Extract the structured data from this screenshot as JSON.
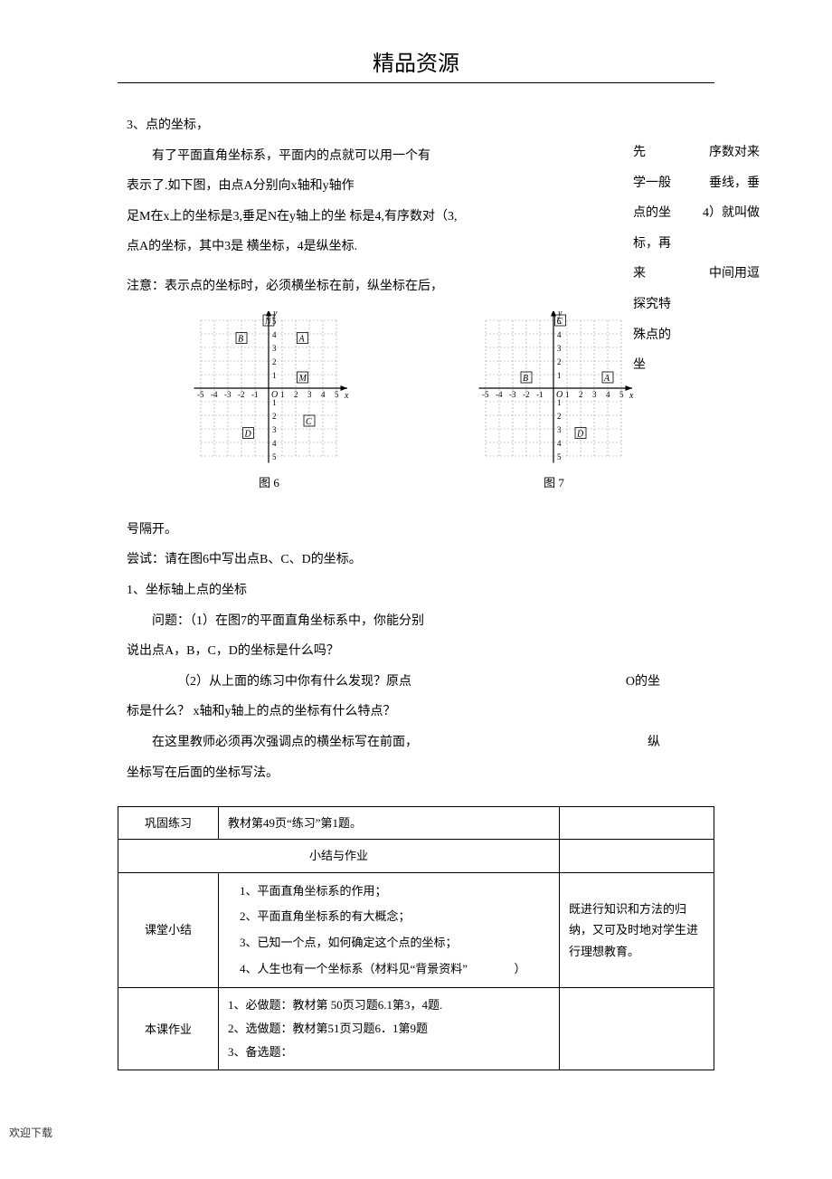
{
  "header": {
    "title": "精品资源"
  },
  "body": {
    "p1_num": "3、点的坐标，",
    "p2": "有了平面直角坐标系，平面内的点就可以用一个有",
    "p3": "表示了.如下图，由点A分别向x轴和y轴作",
    "p4": "足M在x上的坐标是3,垂足N在y轴上的坐 标是4,有序数对（3,",
    "p5": "点A的坐标，其中3是 横坐标，4是纵坐标.",
    "p6": "注意：表示点的坐标时，必须横坐标在前，纵坐标在后，",
    "p7": "号隔开。",
    "p8": "尝试：请在图6中写出点B、C、D的坐标。",
    "p9": "1、坐标轴上点的坐标",
    "p10": "问题：（1）在图7的平面直角坐标系中，你能分别",
    "p11": "说出点A，B，C，D的坐标是什么吗？",
    "p12": "（2）从上面的练习中你有什么发现？原点",
    "p12_r": "O的坐",
    "p13": "标是什么？ x轴和y轴上的点的坐标有什么特点？",
    "p14": "在这里教师必须再次强调点的横坐标写在前面，",
    "p14_r": "纵",
    "p15": "坐标写在后面的坐标写法。"
  },
  "right": {
    "r1a": "先",
    "r1b": "序数对来",
    "r2a": "学一般",
    "r2b": "垂线，垂",
    "r3a": "点的坐",
    "r3b": "4）就叫做",
    "r4": "标，再",
    "r5": "来",
    "r5b": "中间用逗",
    "r6": "探究特",
    "r7": "殊点的",
    "r8": "坐"
  },
  "figure6": {
    "caption": "图 6",
    "grid_color": "#a0a0a0",
    "axis_color": "#000000",
    "labels": {
      "B": [
        -2,
        3.5
      ],
      "N": [
        0,
        4.8
      ],
      "A": [
        2.5,
        3.5
      ],
      "M": [
        2.5,
        0.6
      ],
      "C": [
        3,
        -2.6
      ],
      "D": [
        -1.5,
        -3.5
      ]
    },
    "xrange": [
      -5,
      5
    ],
    "yrange": [
      -5,
      5
    ]
  },
  "figure7": {
    "caption": "图 7",
    "grid_color": "#a0a0a0",
    "axis_color": "#000000",
    "labels": {
      "C": [
        0.5,
        4.8
      ],
      "B": [
        -2,
        0.6
      ],
      "A": [
        4,
        0.6
      ],
      "D": [
        2,
        -3.5
      ]
    },
    "xrange": [
      -5,
      5
    ],
    "yrange": [
      -5,
      5
    ]
  },
  "table": {
    "row1_label": "巩固练习",
    "row1_text": "教材第49页“练习”第1题。",
    "sect_title": "小结与作业",
    "row2_label": "课堂小结",
    "row2_items": [
      "1、平面直角坐标系的作用；",
      "2、平面直角坐标系的有大概念；",
      "3、已知一个点，如何确定这个点的坐标；",
      "4、人生也有一个坐标系（材料见“背景资料”"
    ],
    "row2_tail": "）",
    "row2_note": "既进行知识和方法的归纳，又可及时地对学生进行理想教育。",
    "row3_label": "本课作业",
    "row3_items": [
      "1、必做题：教材第 50页习题6.1第3，4题.",
      "2、选做题：教材第51页习题6．1第9题",
      "3、备选题："
    ]
  },
  "footer": {
    "dl": "欢迎下载"
  }
}
